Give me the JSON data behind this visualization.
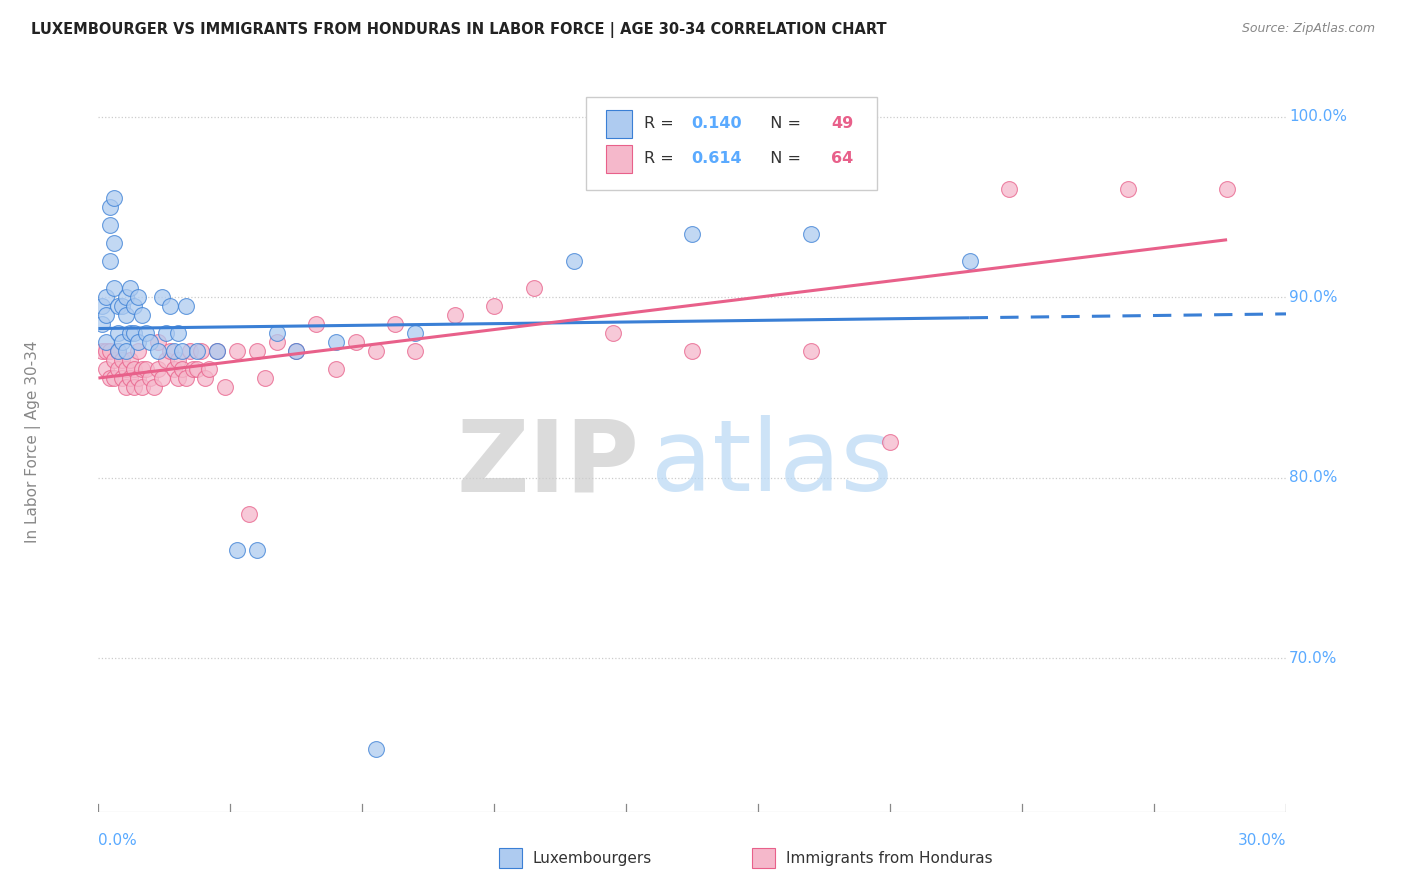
{
  "title": "LUXEMBOURGER VS IMMIGRANTS FROM HONDURAS IN LABOR FORCE | AGE 30-34 CORRELATION CHART",
  "source": "Source: ZipAtlas.com",
  "ylabel": "In Labor Force | Age 30-34",
  "blue_R": 0.14,
  "blue_N": 49,
  "pink_R": 0.614,
  "pink_N": 64,
  "blue_color": "#aecbf0",
  "pink_color": "#f5b8cb",
  "blue_line_color": "#3a7fd5",
  "pink_line_color": "#e8608a",
  "xlim": [
    0.0,
    0.3
  ],
  "ylim": [
    0.615,
    1.025
  ],
  "y_ticks": [
    0.7,
    0.8,
    0.9,
    1.0
  ],
  "y_tick_labels": [
    "70.0%",
    "80.0%",
    "90.0%",
    "100.0%"
  ],
  "tick_color": "#5aaaff",
  "blue_scatter_x": [
    0.001,
    0.001,
    0.002,
    0.002,
    0.002,
    0.003,
    0.003,
    0.003,
    0.004,
    0.004,
    0.004,
    0.005,
    0.005,
    0.005,
    0.006,
    0.006,
    0.007,
    0.007,
    0.007,
    0.008,
    0.008,
    0.009,
    0.009,
    0.01,
    0.01,
    0.011,
    0.012,
    0.013,
    0.015,
    0.016,
    0.017,
    0.018,
    0.019,
    0.02,
    0.021,
    0.022,
    0.025,
    0.03,
    0.035,
    0.04,
    0.045,
    0.05,
    0.06,
    0.07,
    0.08,
    0.12,
    0.15,
    0.18,
    0.22
  ],
  "blue_scatter_y": [
    0.895,
    0.885,
    0.9,
    0.89,
    0.875,
    0.95,
    0.94,
    0.92,
    0.955,
    0.93,
    0.905,
    0.895,
    0.88,
    0.87,
    0.895,
    0.875,
    0.9,
    0.89,
    0.87,
    0.905,
    0.88,
    0.895,
    0.88,
    0.9,
    0.875,
    0.89,
    0.88,
    0.875,
    0.87,
    0.9,
    0.88,
    0.895,
    0.87,
    0.88,
    0.87,
    0.895,
    0.87,
    0.87,
    0.76,
    0.76,
    0.88,
    0.87,
    0.875,
    0.65,
    0.88,
    0.92,
    0.935,
    0.935,
    0.92
  ],
  "pink_scatter_x": [
    0.001,
    0.002,
    0.002,
    0.003,
    0.003,
    0.004,
    0.004,
    0.005,
    0.005,
    0.006,
    0.006,
    0.007,
    0.007,
    0.008,
    0.008,
    0.009,
    0.009,
    0.01,
    0.01,
    0.011,
    0.011,
    0.012,
    0.013,
    0.014,
    0.015,
    0.015,
    0.016,
    0.017,
    0.018,
    0.019,
    0.02,
    0.02,
    0.021,
    0.022,
    0.023,
    0.024,
    0.025,
    0.026,
    0.027,
    0.028,
    0.03,
    0.032,
    0.035,
    0.038,
    0.04,
    0.042,
    0.045,
    0.05,
    0.055,
    0.06,
    0.065,
    0.07,
    0.075,
    0.08,
    0.09,
    0.1,
    0.11,
    0.13,
    0.15,
    0.18,
    0.2,
    0.23,
    0.26,
    0.285
  ],
  "pink_scatter_y": [
    0.87,
    0.87,
    0.86,
    0.87,
    0.855,
    0.865,
    0.855,
    0.87,
    0.86,
    0.865,
    0.855,
    0.86,
    0.85,
    0.865,
    0.855,
    0.86,
    0.85,
    0.87,
    0.855,
    0.86,
    0.85,
    0.86,
    0.855,
    0.85,
    0.875,
    0.86,
    0.855,
    0.865,
    0.87,
    0.86,
    0.865,
    0.855,
    0.86,
    0.855,
    0.87,
    0.86,
    0.86,
    0.87,
    0.855,
    0.86,
    0.87,
    0.85,
    0.87,
    0.78,
    0.87,
    0.855,
    0.875,
    0.87,
    0.885,
    0.86,
    0.875,
    0.87,
    0.885,
    0.87,
    0.89,
    0.895,
    0.905,
    0.88,
    0.87,
    0.87,
    0.82,
    0.96,
    0.96,
    0.96
  ],
  "watermark_zip": "ZIP",
  "watermark_atlas": "atlas",
  "bottom_legend_labels": [
    "Luxembourgers",
    "Immigrants from Honduras"
  ]
}
